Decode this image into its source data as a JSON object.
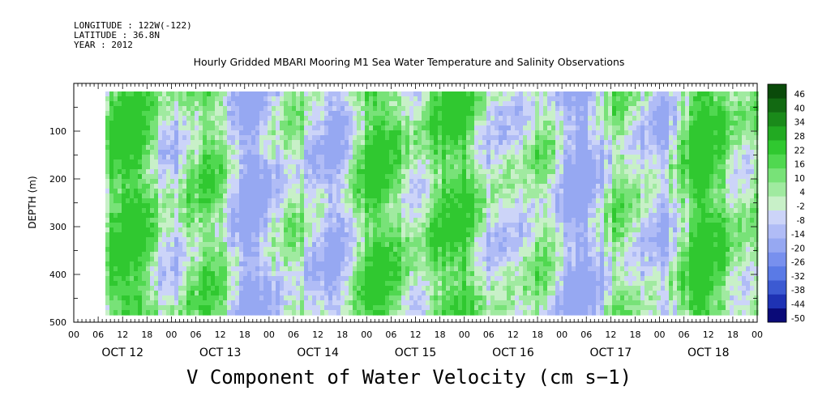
{
  "meta": {
    "longitude": "LONGITUDE : 122W(-122)",
    "latitude": "LATITUDE : 36.8N",
    "year": "YEAR : 2012"
  },
  "chart_data": {
    "type": "heatmap",
    "title": "Hourly Gridded MBARI Mooring M1 Sea Water Temperature and Salinity Observations",
    "xlabel": "V Component of Water Velocity (cm s−1)",
    "ylabel": "DEPTH (m)",
    "ylim": [
      500,
      0
    ],
    "yticks": [
      100,
      200,
      300,
      400,
      500
    ],
    "yticklabels": [
      "100",
      "200",
      "300",
      "400",
      "500"
    ],
    "xticklabels": [
      "00",
      "06",
      "12",
      "18",
      "00",
      "06",
      "12",
      "18",
      "00",
      "06",
      "12",
      "18",
      "00",
      "06",
      "12",
      "18",
      "00",
      "06",
      "12",
      "18",
      "00",
      "06",
      "12",
      "18",
      "00",
      "06",
      "12",
      "18",
      "00"
    ],
    "days": [
      "OCT 12",
      "OCT 13",
      "OCT 14",
      "OCT 15",
      "OCT 16",
      "OCT 17",
      "OCT 18"
    ],
    "colorbar": {
      "labels": [
        "46",
        "40",
        "34",
        "28",
        "22",
        "16",
        "10",
        "4",
        "-2",
        "-8",
        "-14",
        "-20",
        "-26",
        "-32",
        "-38",
        "-44",
        "-50"
      ],
      "levels": [
        -50,
        46
      ],
      "colors": [
        "#0a0a78",
        "#1e32b4",
        "#3c5ad2",
        "#5a7ae6",
        "#7890ee",
        "#96a8f2",
        "#b0bcf6",
        "#ccd4f8",
        "#c8f0c8",
        "#a0eaa0",
        "#78e278",
        "#50d850",
        "#30c830",
        "#22aa22",
        "#1a8a1a",
        "#126a12",
        "#0a4a0a"
      ]
    },
    "grid": false
  }
}
